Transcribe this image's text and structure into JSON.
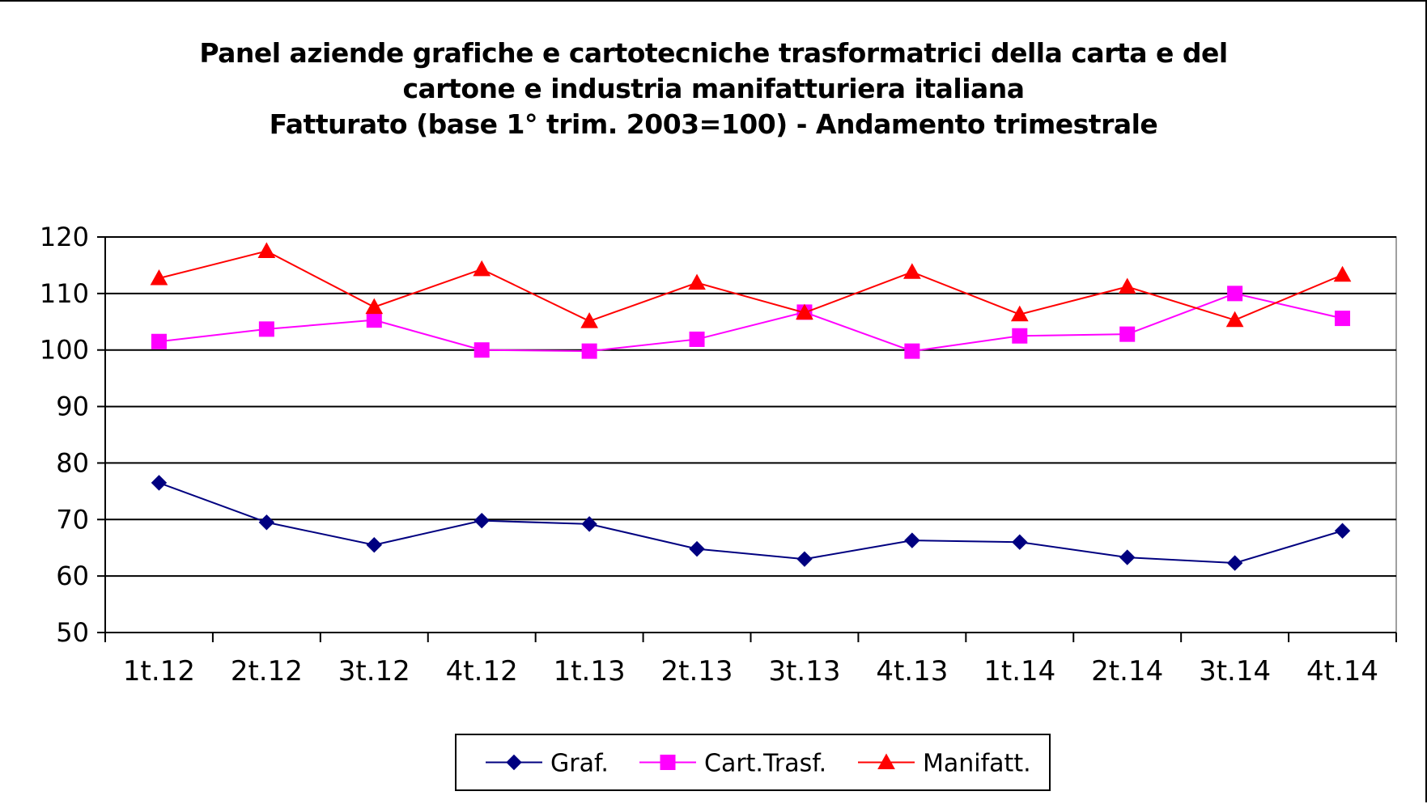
{
  "chart_data": {
    "type": "line",
    "title_lines": [
      "Panel  aziende grafiche e cartotecniche trasformatrici della carta e del",
      "cartone e industria manifatturiera italiana",
      "Fatturato (base 1° trim. 2003=100) - Andamento trimestrale"
    ],
    "categories": [
      "1t.12",
      "2t.12",
      "3t.12",
      "4t.12",
      "1t.13",
      "2t.13",
      "3t.13",
      "4t.13",
      "1t.14",
      "2t.14",
      "3t.14",
      "4t.14"
    ],
    "ylim": [
      50,
      120
    ],
    "yticks": [
      50,
      60,
      70,
      80,
      90,
      100,
      110,
      120
    ],
    "grid": true,
    "legend_position": "bottom",
    "series": [
      {
        "name": "Graf.",
        "color": "#000080",
        "marker": "diamond",
        "values": [
          76.5,
          69.5,
          65.5,
          69.8,
          69.2,
          64.8,
          63.0,
          66.3,
          66.0,
          63.3,
          62.3,
          68.0
        ]
      },
      {
        "name": "Cart.Trasf.",
        "color": "#FF00FF",
        "marker": "square",
        "values": [
          101.5,
          103.7,
          105.3,
          100.0,
          99.8,
          101.9,
          106.7,
          99.8,
          102.5,
          102.8,
          110.0,
          105.6
        ]
      },
      {
        "name": "Manifatt.",
        "color": "#FF0000",
        "marker": "triangle",
        "values": [
          112.7,
          117.5,
          107.6,
          114.3,
          105.1,
          111.9,
          106.6,
          113.8,
          106.3,
          111.2,
          105.3,
          113.3
        ]
      }
    ]
  }
}
